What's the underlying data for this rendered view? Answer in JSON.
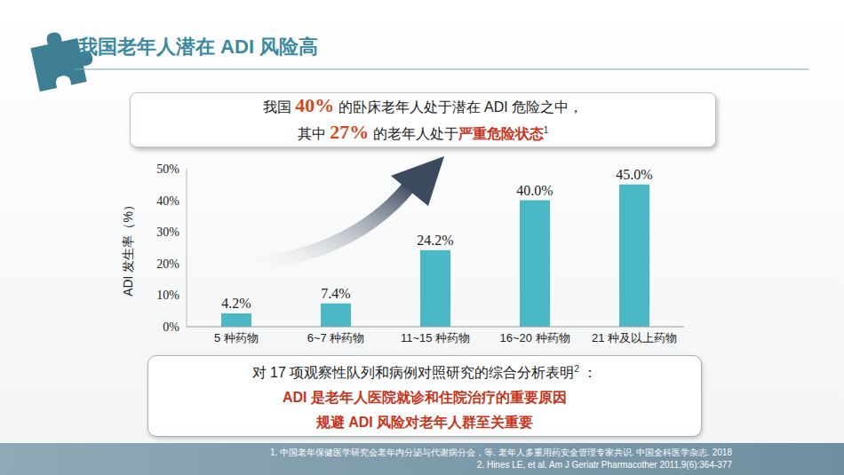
{
  "title": "我国老年人潜在 ADI 风险高",
  "callout": {
    "lines": [
      [
        {
          "text": "我国 "
        },
        {
          "text": "40%",
          "style": "number"
        },
        {
          "text": " 的卧床老年人处于潜在 ADI  危险之中，"
        }
      ],
      [
        {
          "text": "其中 "
        },
        {
          "text": "27%",
          "style": "number"
        },
        {
          "text": " 的老年人处于"
        },
        {
          "text": "严重危险状态",
          "style": "strong"
        },
        {
          "text": "1",
          "style": "sup"
        }
      ]
    ]
  },
  "chart_data": {
    "type": "bar",
    "y_label": "ADI 发生率（%）",
    "categories": [
      "5 种药物",
      "6~7 种药物",
      "11~15 种药物",
      "16~20 种药物",
      "21 种及以上药物"
    ],
    "values": [
      4.2,
      7.4,
      24.2,
      40.0,
      45.0
    ],
    "value_labels": [
      "4.2%",
      "7.4%",
      "24.2%",
      "40.0%",
      "45.0%"
    ],
    "color": "#4bb8c5",
    "ylim": [
      0,
      50
    ],
    "yticks": [
      {
        "value": 0,
        "label": "0%"
      },
      {
        "value": 10,
        "label": "10%"
      },
      {
        "value": 20,
        "label": "20%"
      },
      {
        "value": 30,
        "label": "30%"
      },
      {
        "value": 40,
        "label": "40%"
      },
      {
        "value": 50,
        "label": "50%"
      }
    ],
    "grid": false,
    "data_labels": true
  },
  "summary": {
    "lines": [
      [
        {
          "text": "对 17 项观察性队列和病例对照研究的综合分析表明"
        },
        {
          "text": "2",
          "style": "sup"
        },
        {
          "text": " ："
        }
      ],
      [
        {
          "text": "ADI 是老年人医院就诊和住院治疗的重要原因",
          "style": "strong"
        }
      ],
      [
        {
          "text": "规避 ADI 风险对老年人群至关重要",
          "style": "strong"
        }
      ]
    ]
  },
  "references": [
    "1. 中国老年保健医学研究会老年内分泌与代谢病分会，等. 老年人多重用药安全管理专家共识. 中国全科医学杂志. 2018",
    "2. Hines LE, et al. Am J Geriatr Pharmacother 2011,9(6):364-377"
  ]
}
